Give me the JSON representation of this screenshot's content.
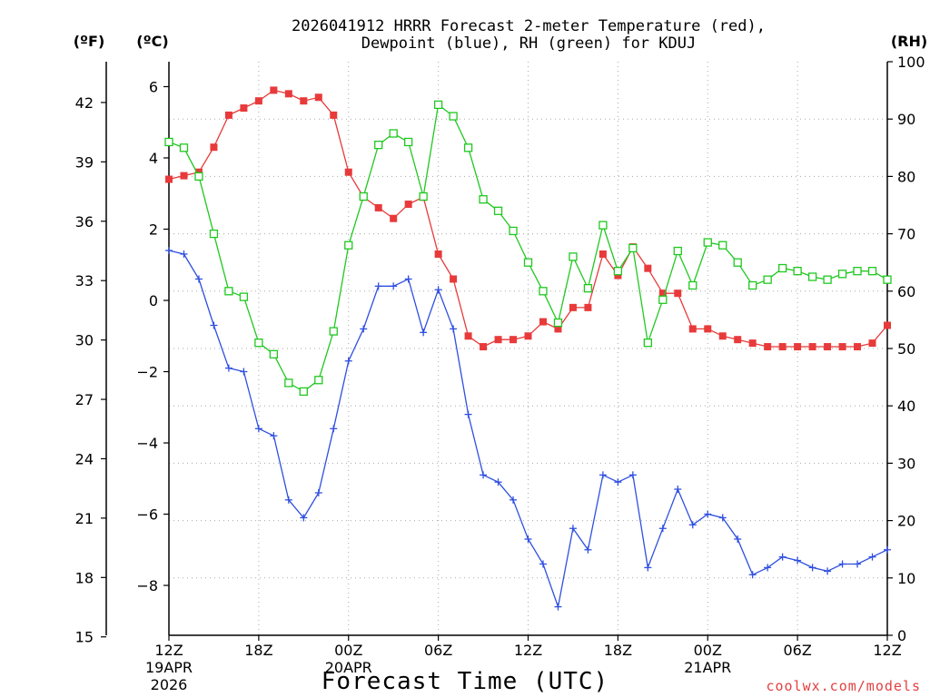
{
  "chart_data": {
    "type": "line",
    "title_line1": "2026041912 HRRR Forecast 2-meter Temperature (red),",
    "title_line2": "Dewpoint (blue), RH (green) for KDUJ",
    "xlabel": "Forecast Time (UTC)",
    "credit": "coolwx.com/models",
    "unit_f": "(ºF)",
    "unit_c": "(ºC)",
    "unit_rh": "(RH)",
    "x_hours": [
      0,
      1,
      2,
      3,
      4,
      5,
      6,
      7,
      8,
      9,
      10,
      11,
      12,
      13,
      14,
      15,
      16,
      17,
      18,
      19,
      20,
      21,
      22,
      23,
      24,
      25,
      26,
      27,
      28,
      29,
      30,
      31,
      32,
      33,
      34,
      35,
      36,
      37,
      38,
      39,
      40,
      41,
      42,
      43,
      44,
      45,
      46,
      47,
      48
    ],
    "xlim": [
      0,
      48
    ],
    "ylim_c": [
      -9.4,
      6.7
    ],
    "ylim_rh": [
      0,
      100
    ],
    "left_f_ticks": [
      "42",
      "39",
      "36",
      "33",
      "30",
      "27",
      "24",
      "21",
      "18",
      "15"
    ],
    "left_c_ticks": [
      "6",
      "4",
      "2",
      "0",
      "−2",
      "−4",
      "−6",
      "−8"
    ],
    "right_rh_ticks": [
      "100",
      "90",
      "80",
      "70",
      "60",
      "50",
      "40",
      "30",
      "20",
      "10",
      "0"
    ],
    "x_tick_labels": [
      {
        "hour": 0,
        "label": "12Z",
        "sub1": "19APR",
        "sub2": "2026"
      },
      {
        "hour": 6,
        "label": "18Z",
        "sub1": "",
        "sub2": ""
      },
      {
        "hour": 12,
        "label": "00Z",
        "sub1": "20APR",
        "sub2": ""
      },
      {
        "hour": 18,
        "label": "06Z",
        "sub1": "",
        "sub2": ""
      },
      {
        "hour": 24,
        "label": "12Z",
        "sub1": "",
        "sub2": ""
      },
      {
        "hour": 30,
        "label": "18Z",
        "sub1": "",
        "sub2": ""
      },
      {
        "hour": 36,
        "label": "00Z",
        "sub1": "21APR",
        "sub2": ""
      },
      {
        "hour": 42,
        "label": "06Z",
        "sub1": "",
        "sub2": ""
      },
      {
        "hour": 48,
        "label": "12Z",
        "sub1": "",
        "sub2": ""
      }
    ],
    "series": [
      {
        "name": "Temperature",
        "axis": "C",
        "color": "#e83a3a",
        "marker": "filled-square",
        "values": [
          3.4,
          3.5,
          3.6,
          4.3,
          5.2,
          5.4,
          5.6,
          5.9,
          5.8,
          5.6,
          5.7,
          5.2,
          3.6,
          2.9,
          2.6,
          2.3,
          2.7,
          2.9,
          1.3,
          0.6,
          -1.0,
          -1.3,
          -1.1,
          -1.1,
          -1.0,
          -0.6,
          -0.8,
          -0.2,
          -0.2,
          1.3,
          0.7,
          1.5,
          0.9,
          0.2,
          0.2,
          -0.8,
          -0.8,
          -1.0,
          -1.1,
          -1.2,
          -1.3,
          -1.3,
          -1.3,
          -1.3,
          -1.3,
          -1.3,
          -1.3,
          -1.2,
          -0.7
        ]
      },
      {
        "name": "Dewpoint",
        "axis": "C",
        "color": "#2f4fe0",
        "marker": "plus",
        "values": [
          1.4,
          1.3,
          0.6,
          -0.7,
          -1.9,
          -2.0,
          -3.6,
          -3.8,
          -5.6,
          -6.1,
          -5.4,
          -3.6,
          -1.7,
          -0.8,
          0.4,
          0.4,
          0.6,
          -0.9,
          0.3,
          -0.8,
          -3.2,
          -4.9,
          -5.1,
          -5.6,
          -6.7,
          -7.4,
          -8.6,
          -6.4,
          -7.0,
          -4.9,
          -5.1,
          -4.9,
          -7.5,
          -6.4,
          -5.3,
          -6.3,
          -6.0,
          -6.1,
          -6.7,
          -7.7,
          -7.5,
          -7.2,
          -7.3,
          -7.5,
          -7.6,
          -7.4,
          -7.4,
          -7.2,
          -7.0
        ]
      },
      {
        "name": "RH",
        "axis": "RH",
        "color": "#20c820",
        "marker": "open-square",
        "values": [
          86,
          85,
          80,
          70,
          60,
          59,
          51,
          49,
          44,
          42.5,
          44.5,
          53,
          68,
          76.5,
          85.5,
          87.5,
          86,
          76.5,
          92.5,
          90.5,
          85,
          76,
          74,
          70.5,
          65,
          60,
          54.5,
          66,
          60.5,
          71.5,
          63.5,
          67.5,
          51,
          58.5,
          67,
          61,
          68.5,
          68,
          65,
          61,
          62,
          64,
          63.5,
          62.5,
          62,
          63,
          63.5,
          63.5,
          62
        ]
      }
    ]
  }
}
